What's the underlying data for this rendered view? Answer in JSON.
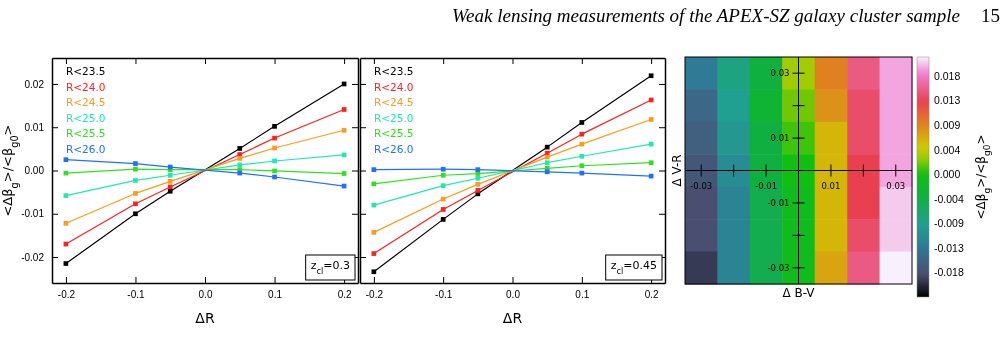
{
  "chart_data": [
    {
      "type": "line",
      "xlabel": "ΔR",
      "ylabel": "<Δβ$_{g}$>/<β$_{g0}$>",
      "x": [
        -0.2,
        -0.1,
        -0.05,
        0.05,
        0.1,
        0.2
      ],
      "xlim": [
        -0.22,
        0.22
      ],
      "ylim": [
        -0.026,
        0.026
      ],
      "xticks": [
        -0.2,
        -0.1,
        {
          "value": 0,
          "label": "0.0"
        },
        0.1,
        0.2
      ],
      "yticks": [
        -0.02,
        -0.01,
        {
          "value": 0,
          "label": "0.00"
        },
        0.01,
        0.02
      ],
      "marker": "square",
      "legend": "top left",
      "grid": false,
      "series": [
        {
          "name": "R<23.5",
          "color": "#000000",
          "values": [
            -0.0215,
            -0.01,
            -0.0048,
            0.0051,
            0.0102,
            0.02
          ]
        },
        {
          "name": "R<24.0",
          "color": "#ff2020",
          "values": [
            -0.017,
            -0.0077,
            -0.0038,
            0.0037,
            0.0075,
            0.0141
          ]
        },
        {
          "name": "R<24.5",
          "color": "#ff9a20",
          "values": [
            -0.0122,
            -0.0053,
            -0.0025,
            0.0028,
            0.0052,
            0.0093
          ]
        },
        {
          "name": "R<25.0",
          "color": "#20e8b0",
          "values": [
            -0.0058,
            -0.0023,
            -0.0011,
            0.0013,
            0.0022,
            0.0036
          ]
        },
        {
          "name": "R<25.5",
          "color": "#30e020",
          "values": [
            -0.0006,
            0.0003,
            0.0002,
            0.0002,
            -0.0001,
            -0.0007
          ]
        },
        {
          "name": "R<26.0",
          "color": "#2070ff",
          "values": [
            0.0025,
            0.0016,
            0.0008,
            -0.0006,
            -0.0015,
            -0.0036
          ]
        }
      ],
      "annotations": [
        "Weak lensing measurements of the APEX-SZ galaxy cluster sample",
        "15",
        "z$_{cl}$=0.3"
      ]
    },
    {
      "type": "line",
      "xlabel": "ΔR",
      "x": [
        -0.2,
        -0.1,
        -0.05,
        0.05,
        0.1,
        0.2
      ],
      "xlim": [
        -0.22,
        0.22
      ],
      "ylim": [
        -0.026,
        0.026
      ],
      "xticks": [
        -0.2,
        -0.1,
        {
          "value": 0,
          "label": "0.0"
        },
        0.1,
        0.2
      ],
      "yticks": [
        -0.02,
        -0.01,
        0,
        0.01,
        0.02
      ],
      "tick_labels": "x",
      "marker": "square",
      "legend": "top left",
      "grid": false,
      "series": [
        {
          "name": "R<23.5",
          "color": "#000000",
          "values": [
            -0.0234,
            -0.0113,
            -0.0054,
            0.0054,
            0.0111,
            0.0219
          ]
        },
        {
          "name": "R<24.0",
          "color": "#ff2020",
          "values": [
            -0.0192,
            -0.009,
            -0.0046,
            0.004,
            0.0084,
            0.0163
          ]
        },
        {
          "name": "R<24.5",
          "color": "#ff9a20",
          "values": [
            -0.0143,
            -0.0066,
            -0.0032,
            0.0031,
            0.0061,
            0.0118
          ]
        },
        {
          "name": "R<25.0",
          "color": "#20e8b0",
          "values": [
            -0.008,
            -0.0035,
            -0.0018,
            0.0018,
            0.0033,
            0.0061
          ]
        },
        {
          "name": "R<25.5",
          "color": "#30e020",
          "values": [
            -0.0031,
            -0.0011,
            -0.0007,
            0.0005,
            0.0011,
            0.0018
          ]
        },
        {
          "name": "R<26.0",
          "color": "#2070ff",
          "values": [
            0.0002,
            0.0003,
            0.0002,
            -0.0003,
            -0.0006,
            -0.0013
          ]
        }
      ],
      "annotations": [
        "z$_{cl}$=0.45"
      ]
    },
    {
      "type": "heatmap",
      "xlabel": "Δ B-V",
      "ylabel": "Δ V-R",
      "clabel": "<Δβ$_{g}$>/<β$_{g0}$>",
      "categories": [
        "-0.03",
        null,
        "-0.01",
        null,
        "0.01",
        null,
        "0.03"
      ],
      "y_categories": [
        "0.03",
        null,
        "0.01",
        null,
        "-0.01",
        null,
        "-0.03"
      ],
      "cells": [
        [
          -0.013,
          -0.008,
          -0.004,
          0.003,
          0.009,
          0.015,
          0.019
        ],
        [
          -0.015,
          -0.009,
          -0.003,
          0.002,
          0.008,
          0.014,
          0.019
        ],
        [
          -0.016,
          -0.01,
          -0.004,
          0.001,
          0.006,
          0.014,
          0.019
        ],
        [
          -0.017,
          -0.011,
          -0.004,
          0,
          0.006,
          0.013,
          0.019
        ],
        [
          -0.018,
          -0.012,
          -0.005,
          -0.001,
          0.006,
          0.013,
          0.02
        ],
        [
          -0.018,
          -0.012,
          -0.005,
          -0.001,
          0.006,
          0.014,
          0.02
        ],
        [
          -0.019,
          -0.012,
          -0.005,
          -0.001,
          0.007,
          0.015,
          0.021
        ]
      ],
      "clim": [
        -0.022,
        0.021
      ],
      "cticks": [
        {
          "value": -0.0176,
          "label": "-0.018"
        },
        {
          "value": -0.0132,
          "label": "-0.013"
        },
        {
          "value": -0.0088,
          "label": "-0.009"
        },
        {
          "value": -0.0044,
          "label": "-0.004"
        },
        {
          "value": 0,
          "label": "0.000"
        },
        {
          "value": 0.0044,
          "label": "0.004"
        },
        {
          "value": 0.0088,
          "label": "0.009"
        },
        {
          "value": 0.0132,
          "label": "0.013"
        },
        {
          "value": 0.0176,
          "label": "0.018"
        }
      ]
    }
  ]
}
